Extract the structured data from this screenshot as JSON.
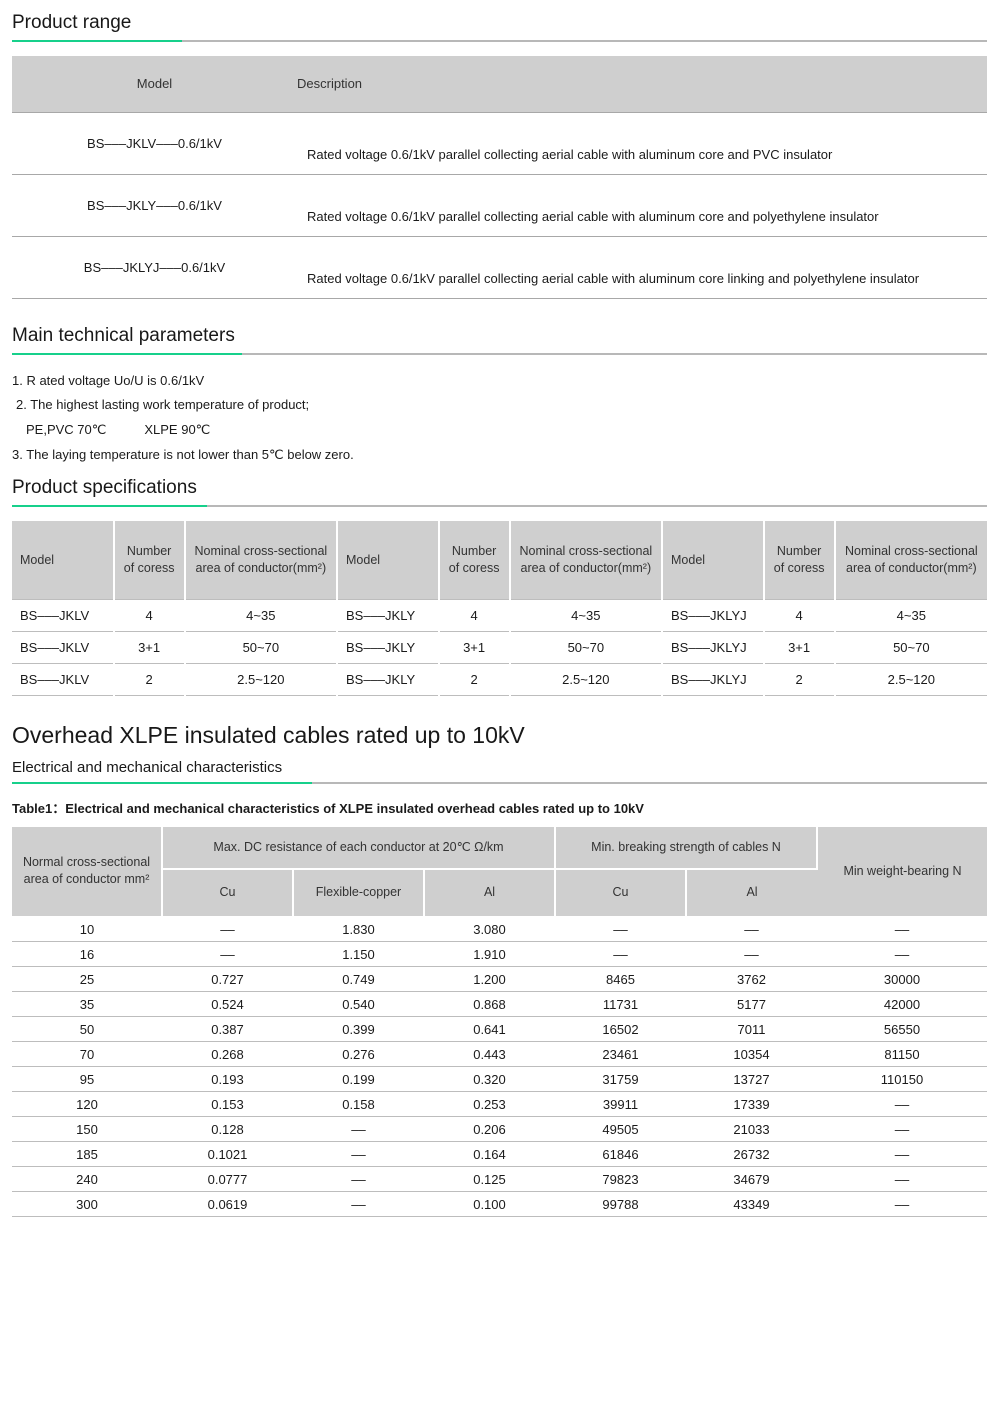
{
  "colors": {
    "accent": "#17d08b",
    "header_bg": "#cfcfcf",
    "border": "#b8b8b8",
    "row_border": "#bdbdbd",
    "text": "#1a1a1a"
  },
  "sections": {
    "product_range_title": "Product range",
    "main_params_title": "Main technical parameters",
    "product_specs_title": "Product specifications",
    "overhead_title": "Overhead XLPE insulated cables rated up to 10kV",
    "overhead_subtitle": "Electrical and mechanical characteristics",
    "table1_caption": "Table1：Electrical and mechanical characteristics of XLPE insulated overhead cables rated up to 10kV"
  },
  "range_table": {
    "columns": [
      "Model",
      "Description"
    ],
    "rows": [
      [
        "BS–––JKLV–––0.6/1kV",
        "Rated voltage 0.6/1kV parallel collecting aerial cable with aluminum core and PVC insulator"
      ],
      [
        "BS–––JKLY–––0.6/1kV",
        "Rated voltage 0.6/1kV parallel collecting aerial cable with aluminum core and polyethylene insulator"
      ],
      [
        "BS–––JKLYJ–––0.6/1kV",
        "Rated voltage 0.6/1kV parallel collecting aerial cable with aluminum core linking and polyethylene insulator"
      ]
    ]
  },
  "main_params": {
    "line1": "1. R ated voltage Uo/U is 0.6/1kV",
    "line2": "2. The highest lasting work temperature of product;",
    "line3a": "PE,PVC   70℃",
    "line3b": "XLPE   90℃",
    "line4": "3. The laying temperature is not lower than 5℃ below zero."
  },
  "spec_table": {
    "headers": {
      "model": "Model",
      "num": "Number of coress",
      "area": "Nominal cross-sectional area of conductor(mm²)"
    },
    "rows": [
      [
        "BS–––JKLV",
        "4",
        "4~35",
        "BS–––JKLY",
        "4",
        "4~35",
        "BS–––JKLYJ",
        "4",
        "4~35"
      ],
      [
        "BS–––JKLV",
        "3+1",
        "50~70",
        "BS–––JKLY",
        "3+1",
        "50~70",
        "BS–––JKLYJ",
        "3+1",
        "50~70"
      ],
      [
        "BS–––JKLV",
        "2",
        "2.5~120",
        "BS–––JKLY",
        "2",
        "2.5~120",
        "BS–––JKLYJ",
        "2",
        "2.5~120"
      ]
    ]
  },
  "table1": {
    "headers": {
      "ncsa": "Normal cross-sectional area of conductor mm²",
      "dc_group": "Max. DC resistance of each conductor at 20℃ Ω/km",
      "dc_cu": "Cu",
      "dc_fcu": "Flexible-copper",
      "dc_al": "Al",
      "bs_group": "Min. breaking strength of cables N",
      "bs_cu": "Cu",
      "bs_al": "Al",
      "wb": "Min weight-bearing N"
    },
    "rows": [
      [
        "10",
        "––",
        "1.830",
        "3.080",
        "––",
        "––",
        "––"
      ],
      [
        "16",
        "––",
        "1.150",
        "1.910",
        "––",
        "––",
        "––"
      ],
      [
        "25",
        "0.727",
        "0.749",
        "1.200",
        "8465",
        "3762",
        "30000"
      ],
      [
        "35",
        "0.524",
        "0.540",
        "0.868",
        "11731",
        "5177",
        "42000"
      ],
      [
        "50",
        "0.387",
        "0.399",
        "0.641",
        "16502",
        "7011",
        "56550"
      ],
      [
        "70",
        "0.268",
        "0.276",
        "0.443",
        "23461",
        "10354",
        "81150"
      ],
      [
        "95",
        "0.193",
        "0.199",
        "0.320",
        "31759",
        "13727",
        "110150"
      ],
      [
        "120",
        "0.153",
        "0.158",
        "0.253",
        "39911",
        "17339",
        "––"
      ],
      [
        "150",
        "0.128",
        "––",
        "0.206",
        "49505",
        "21033",
        "––"
      ],
      [
        "185",
        "0.1021",
        "––",
        "0.164",
        "61846",
        "26732",
        "––"
      ],
      [
        "240",
        "0.0777",
        "––",
        "0.125",
        "79823",
        "34679",
        "––"
      ],
      [
        "300",
        "0.0619",
        "––",
        "0.100",
        "99788",
        "43349",
        "––"
      ]
    ]
  }
}
